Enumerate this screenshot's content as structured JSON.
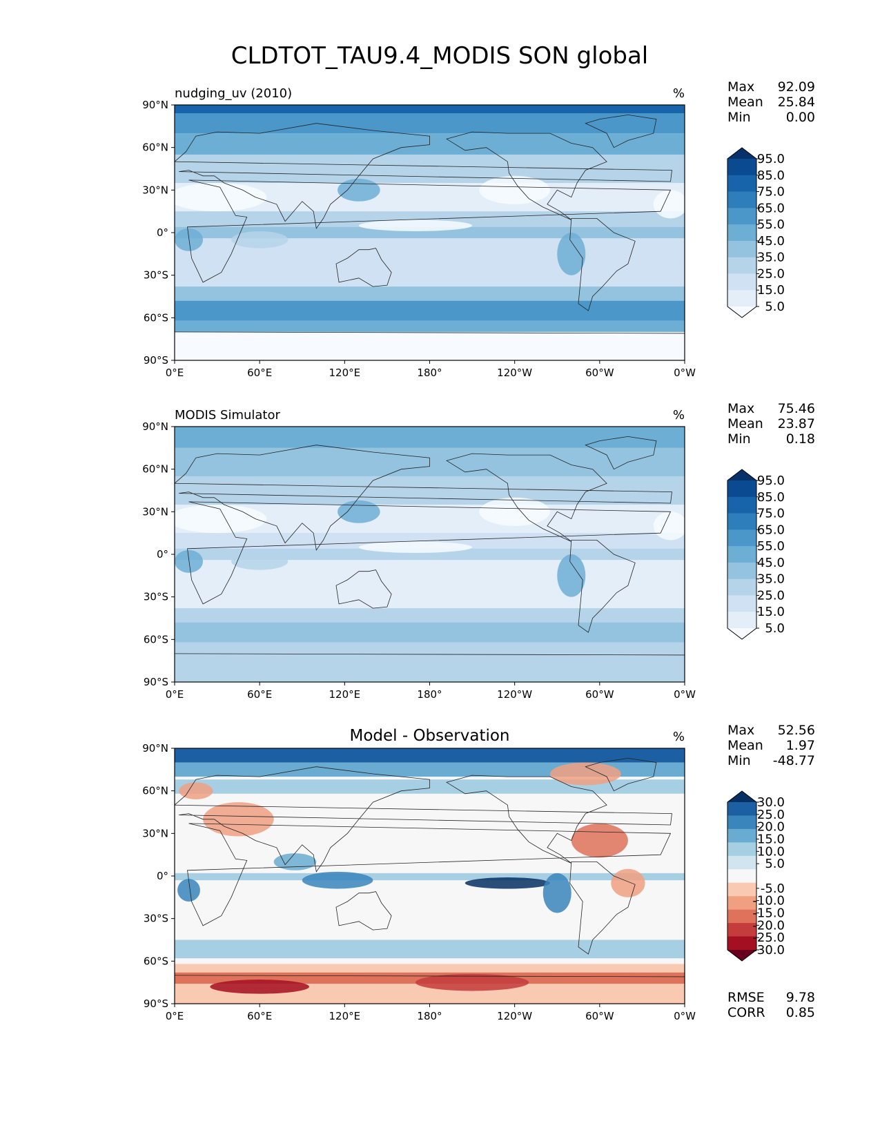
{
  "title": "CLDTOT_TAU9.4_MODIS SON global",
  "lon_ticks": [
    "0°E",
    "60°E",
    "120°E",
    "180°",
    "120°W",
    "60°W",
    "0°W"
  ],
  "lat_ticks": [
    "90°N",
    "60°N",
    "30°N",
    "0°",
    "30°S",
    "60°S",
    "90°S"
  ],
  "chart_data": [
    {
      "type": "heatmap",
      "panel": "test",
      "left_title": "nudging_uv (2010)",
      "center_title": "",
      "units": "%",
      "stats": [
        {
          "label": "Max",
          "value": "92.09"
        },
        {
          "label": "Mean",
          "value": "25.84"
        },
        {
          "label": "Min",
          "value": "0.00"
        }
      ],
      "extra_stats": [],
      "xlim": [
        0,
        360
      ],
      "ylim": [
        -90,
        90
      ],
      "colorbar": {
        "colormap": "Blues",
        "levels": [
          0,
          5,
          10,
          15,
          20,
          25,
          30,
          35,
          40,
          45,
          50,
          55,
          60,
          65,
          70,
          75,
          80,
          85,
          90,
          95,
          100
        ],
        "tick_labels": [
          "5.0",
          "15.0",
          "25.0",
          "35.0",
          "45.0",
          "55.0",
          "65.0",
          "75.0",
          "85.0",
          "95.0"
        ],
        "colors": [
          "#f7fbff",
          "#e3eef9",
          "#cfe1f2",
          "#b5d4e9",
          "#93c3df",
          "#6daed5",
          "#4b97c9",
          "#2f7ebc",
          "#1864aa",
          "#0a4a90",
          "#08306b"
        ]
      }
    },
    {
      "type": "heatmap",
      "panel": "reference",
      "left_title": "MODIS Simulator",
      "center_title": "",
      "units": "%",
      "stats": [
        {
          "label": "Max",
          "value": "75.46"
        },
        {
          "label": "Mean",
          "value": "23.87"
        },
        {
          "label": "Min",
          "value": "0.18"
        }
      ],
      "extra_stats": [],
      "xlim": [
        0,
        360
      ],
      "ylim": [
        -90,
        90
      ],
      "colorbar": {
        "colormap": "Blues",
        "levels": [
          0,
          5,
          10,
          15,
          20,
          25,
          30,
          35,
          40,
          45,
          50,
          55,
          60,
          65,
          70,
          75,
          80,
          85,
          90,
          95,
          100
        ],
        "tick_labels": [
          "5.0",
          "15.0",
          "25.0",
          "35.0",
          "45.0",
          "55.0",
          "65.0",
          "75.0",
          "85.0",
          "95.0"
        ],
        "colors": [
          "#f7fbff",
          "#e3eef9",
          "#cfe1f2",
          "#b5d4e9",
          "#93c3df",
          "#6daed5",
          "#4b97c9",
          "#2f7ebc",
          "#1864aa",
          "#0a4a90",
          "#08306b"
        ]
      }
    },
    {
      "type": "heatmap",
      "panel": "difference",
      "left_title": "",
      "center_title": "Model - Observation",
      "units": "%",
      "stats": [
        {
          "label": "Max",
          "value": "52.56"
        },
        {
          "label": "Mean",
          "value": "1.97"
        },
        {
          "label": "Min",
          "value": "-48.77"
        }
      ],
      "extra_stats": [
        {
          "label": "RMSE",
          "value": "9.78"
        },
        {
          "label": "CORR",
          "value": "0.85"
        }
      ],
      "xlim": [
        0,
        360
      ],
      "ylim": [
        -90,
        90
      ],
      "colorbar": {
        "colormap": "RdBu",
        "levels": [
          -35,
          -30,
          -25,
          -20,
          -15,
          -10,
          -5,
          5,
          10,
          15,
          20,
          25,
          30,
          35
        ],
        "tick_labels": [
          "-30.0",
          "-25.0",
          "-20.0",
          "-15.0",
          "-10.0",
          "-5.0",
          "5.0",
          "10.0",
          "15.0",
          "20.0",
          "25.0",
          "30.0"
        ],
        "colors": [
          "#67001f",
          "#a50f22",
          "#c43c3c",
          "#de725b",
          "#f0a081",
          "#f9c9b1",
          "#f7f7f7",
          "#d1e5f0",
          "#a7cfe4",
          "#6aabd1",
          "#3a85bc",
          "#1c5fa2",
          "#053061"
        ]
      }
    }
  ]
}
